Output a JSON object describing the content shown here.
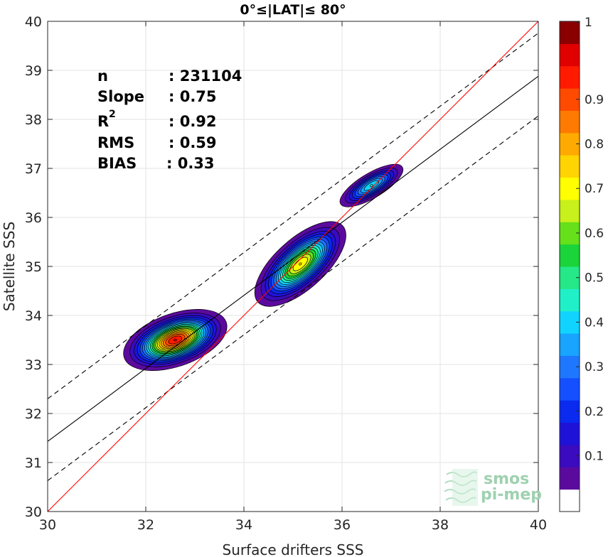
{
  "chart_data": {
    "type": "scatter",
    "title": "0°≤|LAT|≤ 80°",
    "xlabel": "Surface drifters SSS",
    "ylabel": "Satellite SSS",
    "xlim": [
      30,
      40
    ],
    "ylim": [
      30,
      40
    ],
    "xticks": [
      "30",
      "32",
      "34",
      "36",
      "38",
      "40"
    ],
    "yticks": [
      "30",
      "31",
      "32",
      "33",
      "34",
      "35",
      "36",
      "37",
      "38",
      "39",
      "40"
    ],
    "grid": true,
    "stats": [
      {
        "label": "n",
        "value": ": 231104"
      },
      {
        "label": "Slope",
        "value": ": 0.75"
      },
      {
        "label": "R",
        "sup": "2",
        "value": ": 0.92"
      },
      {
        "label": "RMS",
        "value": ": 0.59"
      },
      {
        "label": "BIAS",
        "value": ": 0.33"
      }
    ],
    "lines": {
      "identity": {
        "x": [
          30,
          40
        ],
        "y": [
          30,
          40
        ],
        "color": "#ff0000"
      },
      "fit": {
        "x": [
          30,
          40
        ],
        "y": [
          31.43,
          38.88
        ],
        "color": "#000000"
      },
      "fit_upper": {
        "x": [
          30,
          40
        ],
        "y": [
          32.3,
          39.76
        ],
        "color": "#000000",
        "style": "dashed"
      },
      "fit_lower": {
        "x": [
          30,
          40
        ],
        "y": [
          30.63,
          38.07
        ],
        "color": "#000000",
        "style": "dashed"
      }
    },
    "density_clusters": [
      {
        "x": 32.6,
        "y": 33.5,
        "peak": 1.0,
        "sx": 0.45,
        "sy": 0.22,
        "tilt": 0.35
      },
      {
        "x": 35.15,
        "y": 35.05,
        "peak": 0.75,
        "sx": 0.5,
        "sy": 0.22,
        "tilt": 0.9
      },
      {
        "x": 36.6,
        "y": 36.65,
        "peak": 0.45,
        "sx": 0.35,
        "sy": 0.12,
        "tilt": 0.6
      }
    ],
    "colorbar": {
      "ticks": [
        "0.1",
        "0.2",
        "0.3",
        "0.4",
        "0.5",
        "0.6",
        "0.7",
        "0.8",
        "0.9",
        "1"
      ],
      "tick_values": [
        0.1,
        0.2,
        0.3,
        0.4,
        0.5,
        0.6,
        0.7,
        0.8,
        0.9,
        1.0
      ],
      "levels": [
        0.05,
        0.1,
        0.15,
        0.2,
        0.25,
        0.3,
        0.35,
        0.4,
        0.45,
        0.5,
        0.55,
        0.6,
        0.65,
        0.7,
        0.75,
        0.8,
        0.85,
        0.9,
        0.95,
        1.0
      ],
      "colors": [
        "#ffffff",
        "#5b0a9e",
        "#3a0bbf",
        "#1f12d8",
        "#0a2af0",
        "#1450ff",
        "#1e78ff",
        "#18a4ff",
        "#10d4ff",
        "#20f0c8",
        "#25e888",
        "#1ad43a",
        "#66e01a",
        "#c8f01a",
        "#ffff00",
        "#ffd400",
        "#ffaa00",
        "#ff7a00",
        "#ff4a00",
        "#ff1a00",
        "#e00000",
        "#8a0000"
      ]
    },
    "watermark": [
      "smos",
      "pi-mep"
    ]
  }
}
